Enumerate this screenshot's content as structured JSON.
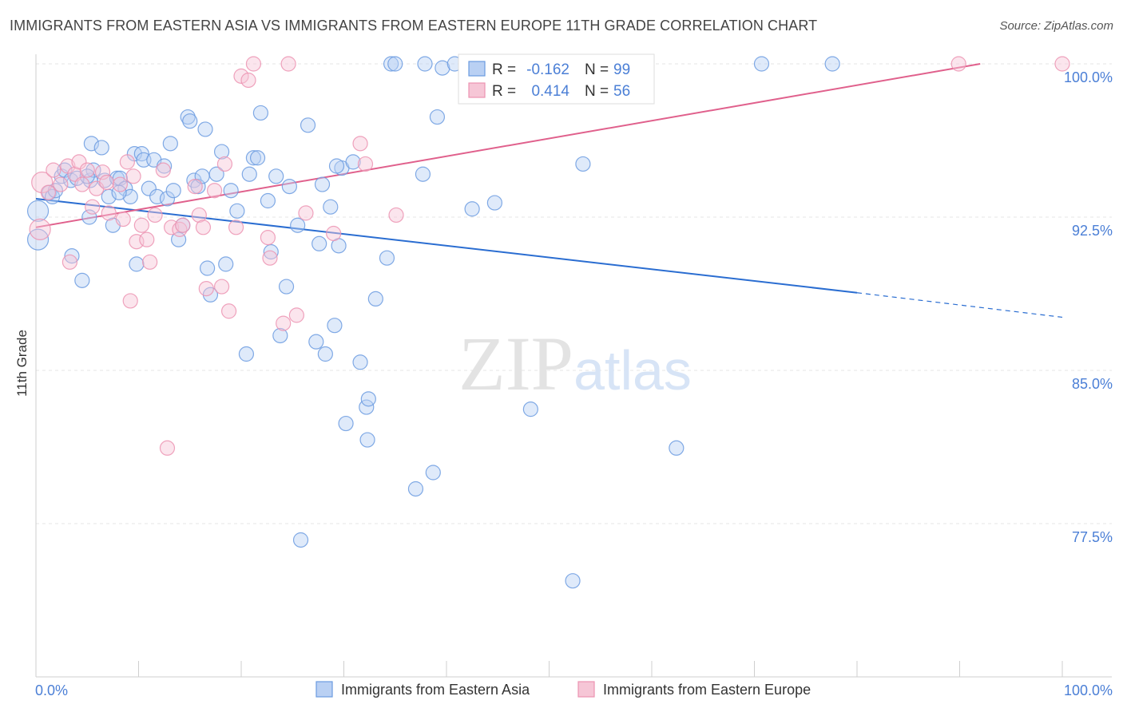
{
  "chart_data": {
    "type": "scatter",
    "title": "IMMIGRANTS FROM EASTERN ASIA VS IMMIGRANTS FROM EASTERN EUROPE 11TH GRADE CORRELATION CHART",
    "source": "Source: ZipAtlas.com",
    "ylabel": "11th Grade",
    "xlabel": "",
    "xlim": [
      0,
      100
    ],
    "ylim": [
      70.8,
      100.6
    ],
    "x_tick_labels": [
      "0.0%",
      "100.0%"
    ],
    "y_ticks": [
      100.0,
      92.5,
      85.0,
      77.5
    ],
    "y_tick_labels": [
      "100.0%",
      "92.5%",
      "85.0%",
      "77.5%"
    ],
    "grid": true,
    "legend_position": "bottom-center",
    "watermark": "ZIPatlas",
    "colors": {
      "asia": "#6b9be0",
      "asia_fill": "#b9d0f3",
      "asia_line": "#2a6dd1",
      "europe": "#ec93b1",
      "europe_fill": "#f6c6d6",
      "europe_line": "#e0608c",
      "tick_text": "#4b7fd6"
    },
    "stats": [
      {
        "r_label": "R =",
        "r": "-0.162",
        "n_label": "N =",
        "n": "99"
      },
      {
        "r_label": "R =",
        "r": "0.414",
        "n_label": "N =",
        "n": "56"
      }
    ],
    "series": [
      {
        "name": "Immigrants from Eastern Asia",
        "trend": {
          "x0": 0,
          "y0": 93.4,
          "x1": 80,
          "y1": 88.8,
          "dash_x1": 100,
          "dash_y1": 87.6
        },
        "points": [
          [
            0.2,
            92.8
          ],
          [
            0.2,
            91.4
          ],
          [
            1.3,
            93.7
          ],
          [
            1.6,
            93.5
          ],
          [
            1.9,
            93.8
          ],
          [
            2.5,
            94.5
          ],
          [
            2.8,
            94.8
          ],
          [
            3.4,
            94.3
          ],
          [
            3.5,
            90.6
          ],
          [
            4.0,
            94.4
          ],
          [
            4.5,
            89.4
          ],
          [
            5.3,
            94.3
          ],
          [
            5.6,
            94.8
          ],
          [
            5.2,
            92.5
          ],
          [
            5.4,
            96.1
          ],
          [
            6.4,
            95.9
          ],
          [
            6.7,
            94.3
          ],
          [
            7.1,
            93.5
          ],
          [
            7.5,
            92.1
          ],
          [
            7.9,
            94.4
          ],
          [
            8.2,
            94.4
          ],
          [
            8.7,
            93.9
          ],
          [
            9.2,
            93.5
          ],
          [
            9.6,
            95.6
          ],
          [
            9.8,
            90.2
          ],
          [
            10.3,
            95.6
          ],
          [
            10.5,
            95.3
          ],
          [
            11.0,
            93.9
          ],
          [
            11.5,
            95.3
          ],
          [
            11.8,
            93.5
          ],
          [
            12.5,
            95.0
          ],
          [
            12.8,
            93.4
          ],
          [
            13.1,
            96.1
          ],
          [
            13.4,
            93.8
          ],
          [
            13.9,
            91.4
          ],
          [
            14.3,
            92.1
          ],
          [
            14.8,
            97.4
          ],
          [
            15.0,
            97.2
          ],
          [
            15.4,
            94.3
          ],
          [
            15.8,
            94.0
          ],
          [
            16.2,
            94.5
          ],
          [
            16.5,
            96.8
          ],
          [
            17.0,
            88.7
          ],
          [
            17.6,
            94.6
          ],
          [
            18.1,
            95.7
          ],
          [
            18.5,
            90.2
          ],
          [
            19.0,
            93.8
          ],
          [
            19.6,
            92.8
          ],
          [
            20.5,
            85.8
          ],
          [
            20.8,
            94.6
          ],
          [
            21.2,
            95.4
          ],
          [
            21.6,
            95.4
          ],
          [
            21.9,
            97.6
          ],
          [
            22.6,
            93.3
          ],
          [
            22.9,
            90.8
          ],
          [
            23.4,
            94.5
          ],
          [
            23.8,
            86.7
          ],
          [
            24.4,
            89.1
          ],
          [
            24.7,
            94.0
          ],
          [
            25.5,
            92.1
          ],
          [
            25.8,
            76.7
          ],
          [
            26.5,
            97.0
          ],
          [
            27.3,
            86.4
          ],
          [
            27.6,
            91.2
          ],
          [
            27.9,
            94.1
          ],
          [
            28.2,
            85.8
          ],
          [
            28.7,
            93.0
          ],
          [
            29.1,
            87.2
          ],
          [
            29.5,
            91.1
          ],
          [
            29.8,
            94.9
          ],
          [
            30.2,
            82.4
          ],
          [
            30.9,
            95.2
          ],
          [
            31.6,
            85.4
          ],
          [
            32.2,
            83.2
          ],
          [
            32.4,
            83.6
          ],
          [
            32.3,
            81.6
          ],
          [
            33.1,
            88.5
          ],
          [
            34.2,
            90.5
          ],
          [
            34.6,
            100.0
          ],
          [
            35.0,
            100.0
          ],
          [
            37.0,
            79.2
          ],
          [
            37.7,
            94.6
          ],
          [
            37.9,
            100.0
          ],
          [
            38.7,
            80.0
          ],
          [
            39.1,
            97.4
          ],
          [
            39.6,
            99.8
          ],
          [
            40.8,
            100.0
          ],
          [
            42.0,
            100.0
          ],
          [
            42.5,
            92.9
          ],
          [
            44.7,
            93.2
          ],
          [
            48.2,
            83.1
          ],
          [
            52.3,
            74.7
          ],
          [
            53.3,
            95.1
          ],
          [
            62.4,
            81.2
          ],
          [
            70.7,
            100.0
          ],
          [
            77.6,
            100.0
          ],
          [
            5.0,
            94.5
          ],
          [
            8.1,
            93.7
          ],
          [
            16.7,
            90.0
          ],
          [
            29.3,
            95.0
          ]
        ]
      },
      {
        "name": "Immigrants from Eastern Europe",
        "trend": {
          "x0": 0,
          "y0": 92.0,
          "x1": 92,
          "y1": 100.0
        },
        "points": [
          [
            0.4,
            91.9
          ],
          [
            0.6,
            94.2
          ],
          [
            1.2,
            93.7
          ],
          [
            1.7,
            94.8
          ],
          [
            2.4,
            94.1
          ],
          [
            3.1,
            95.0
          ],
          [
            3.3,
            90.3
          ],
          [
            3.8,
            94.6
          ],
          [
            4.2,
            95.2
          ],
          [
            4.5,
            94.1
          ],
          [
            5.0,
            94.8
          ],
          [
            5.5,
            93.0
          ],
          [
            5.9,
            93.9
          ],
          [
            6.5,
            94.7
          ],
          [
            6.9,
            94.2
          ],
          [
            7.1,
            92.7
          ],
          [
            8.2,
            94.1
          ],
          [
            8.5,
            92.4
          ],
          [
            8.9,
            95.2
          ],
          [
            9.2,
            88.4
          ],
          [
            9.5,
            94.5
          ],
          [
            9.8,
            91.3
          ],
          [
            10.3,
            92.1
          ],
          [
            10.8,
            91.4
          ],
          [
            11.1,
            90.3
          ],
          [
            11.6,
            92.6
          ],
          [
            12.4,
            94.8
          ],
          [
            12.8,
            81.2
          ],
          [
            13.2,
            92.0
          ],
          [
            14.0,
            91.9
          ],
          [
            14.3,
            92.1
          ],
          [
            15.5,
            94.0
          ],
          [
            15.9,
            92.6
          ],
          [
            16.3,
            92.0
          ],
          [
            16.6,
            89.0
          ],
          [
            17.4,
            93.8
          ],
          [
            18.1,
            89.1
          ],
          [
            18.4,
            95.1
          ],
          [
            18.8,
            87.9
          ],
          [
            19.5,
            92.0
          ],
          [
            20.0,
            99.4
          ],
          [
            20.7,
            99.2
          ],
          [
            21.2,
            100.0
          ],
          [
            22.6,
            91.5
          ],
          [
            22.8,
            90.5
          ],
          [
            24.1,
            87.3
          ],
          [
            24.6,
            100.0
          ],
          [
            25.4,
            87.7
          ],
          [
            26.3,
            92.7
          ],
          [
            29.0,
            91.7
          ],
          [
            31.6,
            96.1
          ],
          [
            32.1,
            95.1
          ],
          [
            35.1,
            92.6
          ],
          [
            44.2,
            100.0
          ],
          [
            89.9,
            100.0
          ],
          [
            100.0,
            100.0
          ]
        ]
      }
    ]
  }
}
